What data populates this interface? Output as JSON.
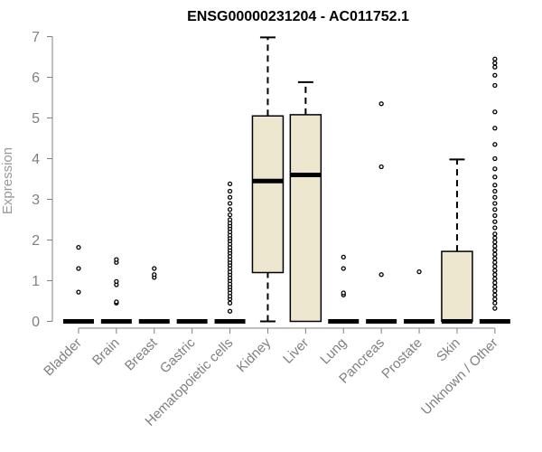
{
  "chart_data": {
    "type": "boxplot",
    "title": "ENSG00000231204 - AC011752.1",
    "xlabel": "",
    "ylabel": "Expression",
    "ylim": [
      0,
      7
    ],
    "yticks": [
      "0",
      "1",
      "2",
      "3",
      "4",
      "5",
      "6",
      "7"
    ],
    "grid": false,
    "box_color": "#EDE7CF",
    "categories": [
      "Bladder",
      "Brain",
      "Breast",
      "Gastric",
      "Hematopoietic cells",
      "Kidney",
      "Liver",
      "Lung",
      "Pancreas",
      "Prostate",
      "Skin",
      "Unknown / Other"
    ],
    "boxes": [
      {
        "min": 0,
        "q1": 0,
        "median": 0,
        "q3": 0,
        "max": 0,
        "outliers": [
          0.72,
          1.3,
          1.82
        ]
      },
      {
        "min": 0,
        "q1": 0,
        "median": 0,
        "q3": 0,
        "max": 0,
        "outliers": [
          0.45,
          0.48,
          0.9,
          0.98,
          1.45,
          1.52
        ]
      },
      {
        "min": 0,
        "q1": 0,
        "median": 0,
        "q3": 0,
        "max": 0,
        "outliers": [
          1.08,
          1.15,
          1.3
        ]
      },
      {
        "min": 0,
        "q1": 0,
        "median": 0,
        "q3": 0,
        "max": 0,
        "outliers": []
      },
      {
        "min": 0,
        "q1": 0,
        "median": 0,
        "q3": 0,
        "max": 0,
        "outliers": [
          0.25,
          0.45,
          0.55,
          0.62,
          0.7,
          0.78,
          0.85,
          0.92,
          1.0,
          1.07,
          1.15,
          1.22,
          1.3,
          1.38,
          1.45,
          1.52,
          1.6,
          1.68,
          1.75,
          1.82,
          1.9,
          1.98,
          2.05,
          2.12,
          2.2,
          2.28,
          2.35,
          2.42,
          2.5,
          2.62,
          2.75,
          2.9,
          3.05,
          3.2,
          3.38
        ]
      },
      {
        "min": 0,
        "q1": 1.2,
        "median": 3.45,
        "q3": 5.05,
        "max": 6.98,
        "outliers": []
      },
      {
        "min": 0,
        "q1": 0,
        "median": 3.6,
        "q3": 5.08,
        "max": 5.88,
        "outliers": []
      },
      {
        "min": 0,
        "q1": 0,
        "median": 0,
        "q3": 0,
        "max": 0,
        "outliers": [
          0.65,
          0.7,
          1.3,
          1.58
        ]
      },
      {
        "min": 0,
        "q1": 0,
        "median": 0,
        "q3": 0,
        "max": 0,
        "outliers": [
          1.15,
          3.8,
          5.35
        ]
      },
      {
        "min": 0,
        "q1": 0,
        "median": 0,
        "q3": 0,
        "max": 0,
        "outliers": [
          1.22
        ]
      },
      {
        "min": 0,
        "q1": 0,
        "median": 0,
        "q3": 1.72,
        "max": 3.98,
        "outliers": []
      },
      {
        "min": 0,
        "q1": 0,
        "median": 0,
        "q3": 0,
        "max": 0,
        "outliers": [
          0.32,
          0.45,
          0.55,
          0.65,
          0.75,
          0.85,
          0.95,
          1.05,
          1.15,
          1.25,
          1.35,
          1.45,
          1.55,
          1.65,
          1.75,
          1.85,
          1.95,
          2.05,
          2.15,
          2.3,
          2.45,
          2.6,
          2.75,
          2.9,
          3.05,
          3.2,
          3.35,
          3.55,
          3.75,
          4.0,
          4.35,
          4.75,
          5.15,
          5.8,
          6.05,
          6.25,
          6.35,
          6.45
        ]
      }
    ]
  }
}
